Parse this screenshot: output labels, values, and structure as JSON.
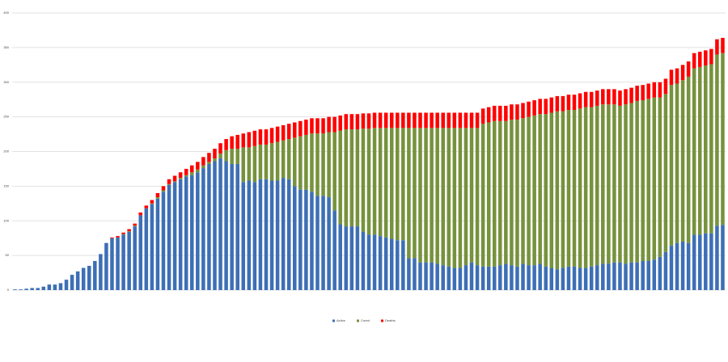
{
  "chart_data": {
    "type": "stacked_bar",
    "categories": [
      null,
      null,
      null,
      null,
      null,
      null,
      null,
      null,
      null,
      null,
      null,
      null,
      null,
      null,
      null,
      null,
      null,
      null,
      null,
      null,
      null,
      null,
      null,
      null,
      null,
      null,
      null,
      null,
      null,
      null,
      null,
      null,
      null,
      null,
      null,
      null,
      null,
      null,
      null,
      null,
      null,
      null,
      null,
      null,
      null,
      null,
      null,
      null,
      null,
      null,
      null,
      null,
      null,
      null,
      null,
      null,
      null,
      null,
      null,
      null,
      null,
      null,
      null,
      null,
      null,
      null,
      null,
      null,
      null,
      null,
      null,
      null,
      null,
      null,
      null,
      null,
      null,
      null,
      null,
      null,
      null,
      null,
      null,
      null,
      null,
      null,
      null,
      null,
      null,
      null,
      null,
      null,
      null,
      null,
      null,
      null,
      null,
      null,
      null,
      null,
      null,
      null,
      null,
      null,
      null,
      null,
      null,
      null,
      null,
      null,
      null,
      null,
      null,
      null,
      null,
      null,
      null,
      null,
      null,
      null,
      null,
      null,
      null,
      null,
      null
    ],
    "series": [
      {
        "name": "Active",
        "color": "#3d6fb5",
        "values": [
          1,
          1,
          2,
          3,
          3,
          5,
          8,
          8,
          10,
          15,
          22,
          27,
          32,
          35,
          42,
          52,
          68,
          75,
          76,
          80,
          84,
          92,
          108,
          118,
          124,
          132,
          142,
          152,
          156,
          160,
          164,
          166,
          170,
          176,
          182,
          186,
          190,
          186,
          182,
          182,
          156,
          158,
          156,
          160,
          160,
          158,
          158,
          162,
          160,
          150,
          145,
          145,
          142,
          136,
          136,
          134,
          115,
          95,
          92,
          92,
          92,
          84,
          80,
          80,
          78,
          76,
          74,
          72,
          72,
          46,
          46,
          40,
          40,
          40,
          38,
          36,
          34,
          32,
          32,
          36,
          40,
          36,
          34,
          34,
          34,
          36,
          38,
          36,
          34,
          38,
          36,
          36,
          38,
          34,
          32,
          30,
          32,
          34,
          34,
          32,
          32,
          34,
          36,
          38,
          38,
          40,
          40,
          38,
          40,
          40,
          42,
          42,
          44,
          48,
          55,
          64,
          68,
          70,
          68,
          80,
          80,
          82,
          82,
          93,
          94
        ]
      },
      {
        "name": "Cured",
        "color": "#76923c",
        "values": [
          0,
          0,
          0,
          0,
          0,
          0,
          0,
          0,
          0,
          0,
          0,
          0,
          0,
          0,
          0,
          0,
          0,
          0,
          0,
          1,
          1,
          1,
          0,
          0,
          1,
          2,
          2,
          1,
          1,
          2,
          2,
          4,
          4,
          4,
          3,
          4,
          7,
          16,
          22,
          22,
          50,
          48,
          52,
          50,
          50,
          54,
          56,
          54,
          58,
          70,
          77,
          79,
          84,
          90,
          90,
          94,
          113,
          135,
          140,
          140,
          140,
          149,
          153,
          154,
          156,
          158,
          160,
          162,
          162,
          188,
          188,
          194,
          194,
          194,
          196,
          198,
          200,
          202,
          202,
          198,
          194,
          198,
          206,
          208,
          210,
          208,
          206,
          210,
          212,
          210,
          214,
          216,
          216,
          220,
          224,
          228,
          226,
          226,
          226,
          230,
          232,
          230,
          230,
          230,
          230,
          228,
          226,
          230,
          230,
          233,
          232,
          234,
          234,
          230,
          228,
          232,
          230,
          233,
          240,
          240,
          242,
          242,
          244,
          247,
          248
        ]
      },
      {
        "name": "Deaths",
        "color": "#ff0000",
        "values": [
          0,
          0,
          0,
          0,
          0,
          0,
          0,
          0,
          0,
          0,
          0,
          0,
          0,
          0,
          0,
          0,
          0,
          1,
          2,
          2,
          3,
          3,
          4,
          4,
          5,
          6,
          6,
          7,
          8,
          8,
          9,
          10,
          11,
          12,
          13,
          14,
          15,
          16,
          18,
          20,
          20,
          22,
          22,
          22,
          22,
          22,
          22,
          22,
          22,
          22,
          22,
          22,
          22,
          22,
          22,
          22,
          22,
          22,
          22,
          22,
          22,
          22,
          22,
          22,
          22,
          22,
          22,
          22,
          22,
          22,
          22,
          22,
          22,
          22,
          22,
          22,
          22,
          22,
          22,
          22,
          22,
          22,
          22,
          22,
          22,
          22,
          22,
          22,
          22,
          22,
          22,
          22,
          22,
          22,
          22,
          22,
          22,
          22,
          22,
          22,
          22,
          22,
          22,
          22,
          22,
          22,
          22,
          22,
          22,
          22,
          22,
          22,
          22,
          22,
          22,
          22,
          22,
          22,
          22,
          22,
          22,
          22,
          22,
          22,
          22
        ]
      }
    ],
    "ylim": [
      0,
      400
    ],
    "yticks": [
      0,
      50,
      100,
      150,
      200,
      250,
      300,
      350,
      400
    ],
    "grid": true,
    "legend": "bottom"
  }
}
